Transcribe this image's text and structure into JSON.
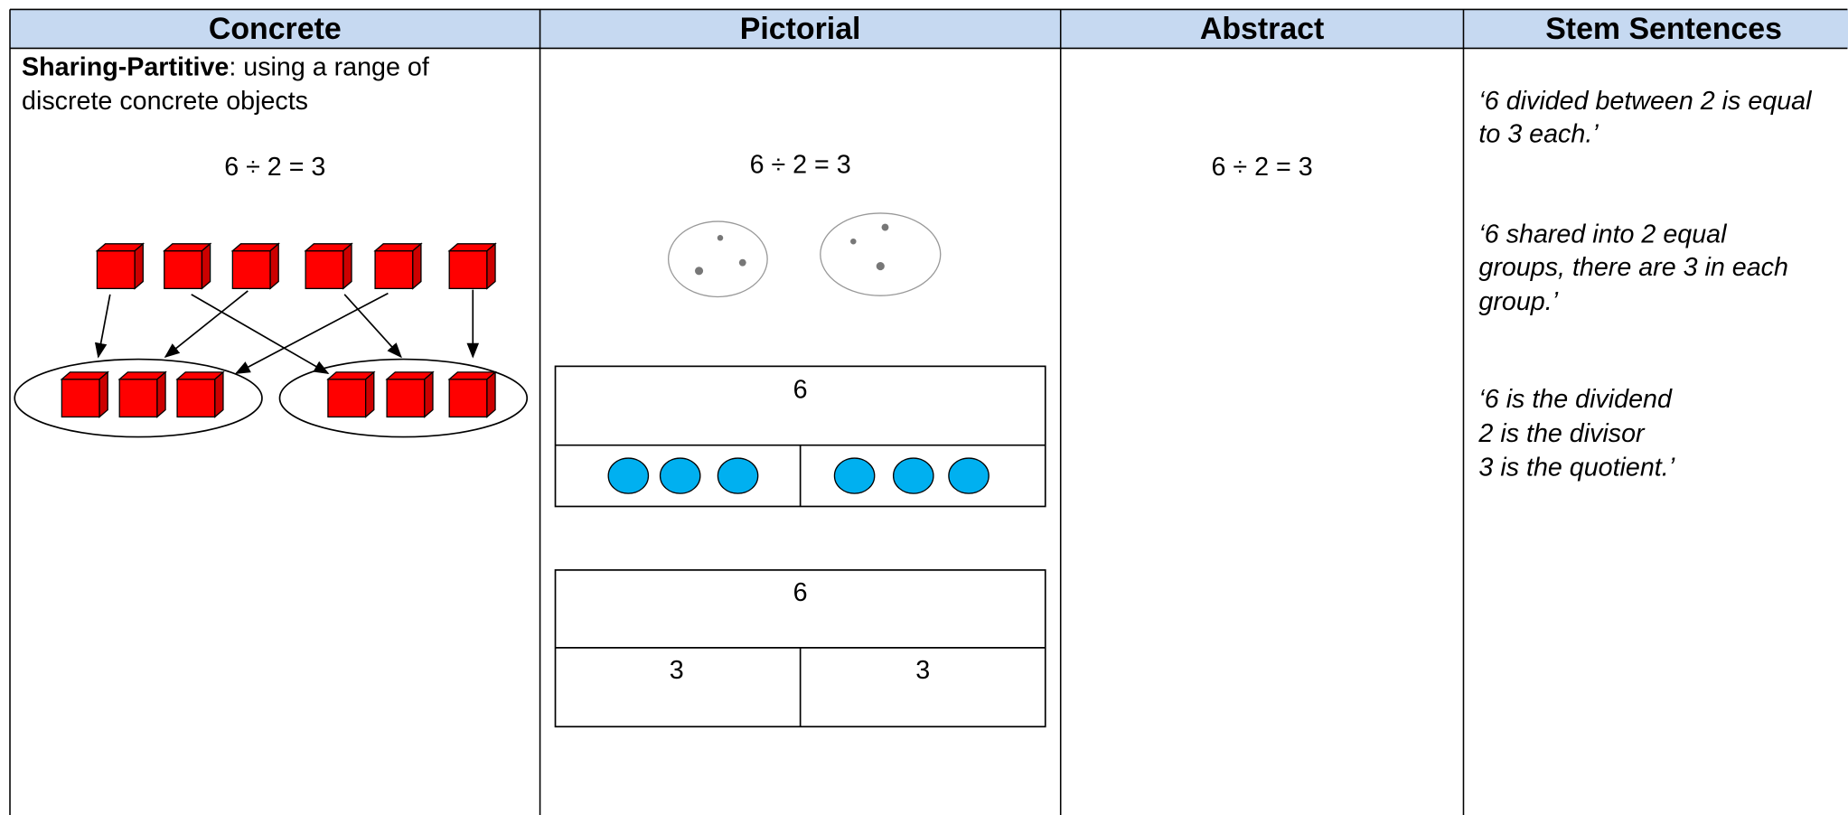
{
  "header": {
    "columns": [
      "Concrete",
      "Pictorial",
      "Abstract",
      "Stem Sentences"
    ]
  },
  "concrete": {
    "title": "Sharing-Partitive",
    "description": [
      ": using a range of",
      "discrete concrete objects"
    ],
    "equation": "6 ÷ 2 = 3"
  },
  "pictorial": {
    "equation": "6 ÷ 2 = 3",
    "bar_model_1": {
      "whole": "6"
    },
    "bar_model_2": {
      "whole": "6",
      "parts": [
        "3",
        "3"
      ]
    }
  },
  "abstract": {
    "equation": "6 ÷ 2 = 3"
  },
  "stem_sentences": [
    [
      "‘6 divided between 2 is equal",
      "to 3 each.’"
    ],
    [
      "‘6 shared into 2 equal",
      "groups, there are 3 in each",
      "group.’"
    ],
    [
      "‘6 is the dividend",
      "2 is the divisor",
      "3 is the quotient.’"
    ]
  ]
}
